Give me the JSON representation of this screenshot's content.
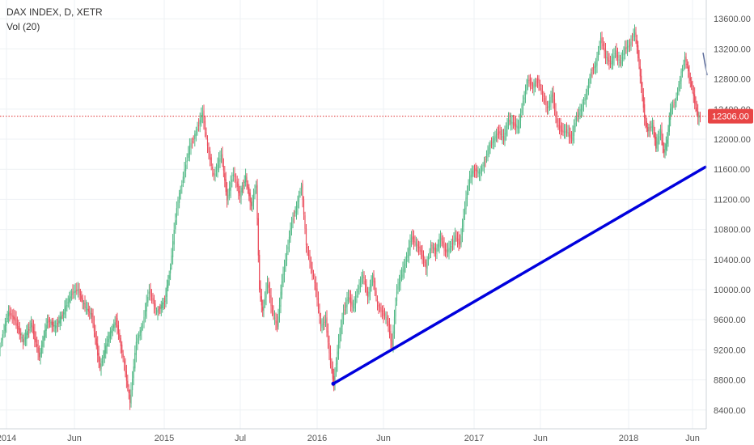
{
  "legend": {
    "symbol": "DAX INDEX, D, XETR",
    "indicator": "Vol (20)"
  },
  "colors": {
    "up": "#53b987",
    "down": "#eb4d5c",
    "trendline": "#0000dd",
    "price_line": "#e03030",
    "badge": "#e84545",
    "grid": "#eef1f4",
    "axis": "#555555"
  },
  "chart_data": {
    "type": "line",
    "title": "DAX INDEX, D, XETR",
    "y_ticks": [
      "8400.00",
      "8800.00",
      "9200.00",
      "9600.00",
      "10000.00",
      "10400.00",
      "10800.00",
      "11200.00",
      "11600.00",
      "12000.00",
      "12400.00",
      "12800.00",
      "13200.00",
      "13600.00"
    ],
    "x_ticks": [
      "2014",
      "Jun",
      "2015",
      "Jul",
      "2016",
      "Jun",
      "2017",
      "Jun",
      "2018",
      "Jun"
    ],
    "ylim": [
      8150,
      13850
    ],
    "last_price_label": "12306.00",
    "last_price": 12306,
    "series": [
      {
        "values": [
          [
            0,
            9200
          ],
          [
            5,
            9400
          ],
          [
            12,
            9700
          ],
          [
            20,
            9600
          ],
          [
            30,
            9300
          ],
          [
            40,
            9550
          ],
          [
            50,
            9100
          ],
          [
            60,
            9600
          ],
          [
            70,
            9500
          ],
          [
            80,
            9700
          ],
          [
            90,
            9950
          ],
          [
            98,
            10000
          ],
          [
            105,
            9800
          ],
          [
            115,
            9650
          ],
          [
            125,
            8950
          ],
          [
            135,
            9350
          ],
          [
            145,
            9600
          ],
          [
            155,
            9000
          ],
          [
            162,
            8500
          ],
          [
            170,
            9300
          ],
          [
            178,
            9550
          ],
          [
            186,
            10000
          ],
          [
            195,
            9700
          ],
          [
            205,
            9850
          ],
          [
            212,
            10300
          ],
          [
            220,
            11100
          ],
          [
            228,
            11500
          ],
          [
            236,
            11900
          ],
          [
            244,
            12100
          ],
          [
            252,
            12350
          ],
          [
            258,
            11900
          ],
          [
            266,
            11500
          ],
          [
            275,
            11800
          ],
          [
            282,
            11200
          ],
          [
            290,
            11550
          ],
          [
            298,
            11250
          ],
          [
            305,
            11500
          ],
          [
            312,
            11100
          ],
          [
            318,
            11400
          ],
          [
            322,
            10000
          ],
          [
            326,
            9700
          ],
          [
            332,
            10100
          ],
          [
            338,
            9700
          ],
          [
            344,
            9500
          ],
          [
            350,
            10100
          ],
          [
            356,
            10500
          ],
          [
            362,
            10900
          ],
          [
            368,
            11100
          ],
          [
            374,
            11400
          ],
          [
            380,
            10600
          ],
          [
            386,
            10300
          ],
          [
            392,
            10000
          ],
          [
            398,
            9500
          ],
          [
            404,
            9600
          ],
          [
            410,
            9000
          ],
          [
            414,
            8750
          ],
          [
            420,
            9300
          ],
          [
            426,
            9700
          ],
          [
            432,
            9900
          ],
          [
            438,
            9750
          ],
          [
            444,
            10000
          ],
          [
            450,
            10200
          ],
          [
            456,
            9900
          ],
          [
            462,
            10200
          ],
          [
            468,
            9800
          ],
          [
            474,
            9700
          ],
          [
            480,
            9600
          ],
          [
            486,
            9250
          ],
          [
            492,
            10000
          ],
          [
            498,
            10200
          ],
          [
            504,
            10400
          ],
          [
            510,
            10700
          ],
          [
            516,
            10600
          ],
          [
            522,
            10500
          ],
          [
            528,
            10300
          ],
          [
            534,
            10600
          ],
          [
            540,
            10500
          ],
          [
            546,
            10700
          ],
          [
            552,
            10500
          ],
          [
            558,
            10550
          ],
          [
            564,
            10700
          ],
          [
            570,
            10600
          ],
          [
            576,
            11100
          ],
          [
            582,
            11500
          ],
          [
            588,
            11600
          ],
          [
            594,
            11550
          ],
          [
            600,
            11700
          ],
          [
            606,
            11900
          ],
          [
            612,
            12000
          ],
          [
            618,
            12100
          ],
          [
            624,
            12000
          ],
          [
            630,
            12250
          ],
          [
            636,
            12200
          ],
          [
            642,
            12150
          ],
          [
            648,
            12500
          ],
          [
            654,
            12800
          ],
          [
            660,
            12700
          ],
          [
            666,
            12800
          ],
          [
            672,
            12600
          ],
          [
            678,
            12400
          ],
          [
            684,
            12600
          ],
          [
            690,
            12200
          ],
          [
            696,
            12100
          ],
          [
            702,
            12100
          ],
          [
            708,
            12000
          ],
          [
            714,
            12300
          ],
          [
            720,
            12400
          ],
          [
            726,
            12600
          ],
          [
            732,
            12900
          ],
          [
            738,
            13000
          ],
          [
            744,
            13350
          ],
          [
            750,
            13100
          ],
          [
            756,
            13000
          ],
          [
            762,
            13150
          ],
          [
            768,
            13000
          ],
          [
            774,
            13200
          ],
          [
            780,
            13250
          ],
          [
            786,
            13450
          ],
          [
            790,
            13100
          ],
          [
            794,
            12700
          ],
          [
            798,
            12300
          ],
          [
            802,
            12100
          ],
          [
            808,
            12200
          ],
          [
            812,
            11900
          ],
          [
            818,
            12100
          ],
          [
            822,
            11800
          ],
          [
            826,
            12000
          ],
          [
            830,
            12400
          ],
          [
            836,
            12500
          ],
          [
            842,
            12800
          ],
          [
            848,
            13100
          ],
          [
            852,
            12900
          ],
          [
            856,
            12700
          ],
          [
            860,
            12500
          ],
          [
            864,
            12300
          ],
          [
            867,
            12306
          ]
        ]
      },
      {
        "values": [
          [
            869,
            13150
          ],
          [
            874,
            12850
          ]
        ]
      }
    ],
    "trendline": {
      "from": [
        "2016-02",
        8750
      ],
      "to": [
        "2018-06",
        11630
      ]
    }
  }
}
